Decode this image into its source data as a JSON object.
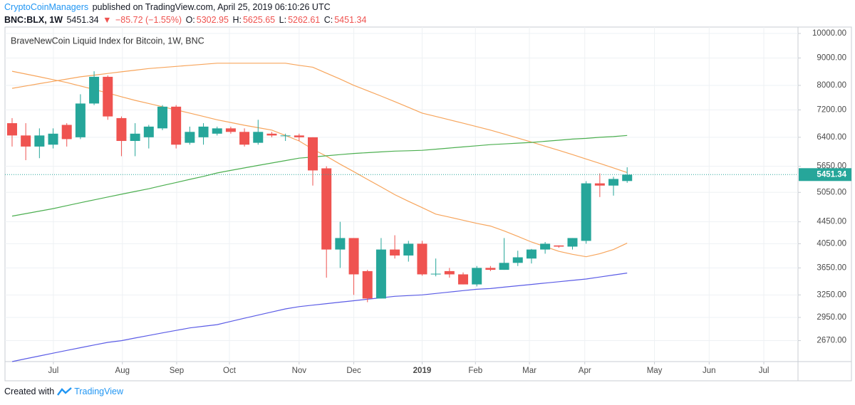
{
  "header": {
    "author": "CryptoCoinManagers",
    "published": "published on TradingView.com, April 25, 2019 06:10:26 UTC",
    "symbol": "BNC:BLX, 1W",
    "arrow": "▼",
    "change": "−85.72 (−1.55%)",
    "o_label": "O:",
    "h_label": "H:",
    "l_label": "L:",
    "c_label": "C:"
  },
  "footer": {
    "created": "Created with",
    "brand": "TradingView"
  },
  "chart_data": {
    "type": "candlestick",
    "title": "BraveNewCoin Liquid Index for Bitcoin, 1W, BNC",
    "log_scale": true,
    "grid": true,
    "up_color": "#26a69a",
    "down_color": "#ef5350",
    "open": [
      6800,
      6450,
      6150,
      6200,
      6750,
      6400,
      7400,
      8300,
      6950,
      6300,
      6400,
      6650,
      7300,
      6250,
      6400,
      6500,
      6650,
      6550,
      6250,
      6500,
      6450,
      6450,
      6400,
      5600,
      3950,
      4150,
      3600,
      3200,
      3950,
      3850,
      4050,
      3550,
      3600,
      3550,
      3400,
      3650,
      3620,
      3730,
      3800,
      3950,
      4020,
      4000,
      4100,
      5250,
      5200,
      5302.95
    ],
    "high": [
      6950,
      6800,
      6650,
      6650,
      6800,
      7700,
      8500,
      8350,
      7000,
      6800,
      6750,
      7350,
      7350,
      6700,
      6800,
      6700,
      6700,
      6650,
      6900,
      6550,
      6500,
      6500,
      6400,
      5650,
      4450,
      4150,
      3620,
      4150,
      4200,
      4100,
      4100,
      3800,
      3650,
      3580,
      3680,
      3680,
      4150,
      3930,
      3960,
      4080,
      4020,
      4150,
      5300,
      5480,
      5400,
      5625.65
    ],
    "low": [
      6150,
      5800,
      5850,
      6100,
      6150,
      6350,
      7350,
      6900,
      5900,
      5900,
      6100,
      6600,
      6100,
      6200,
      6200,
      6450,
      6500,
      6150,
      6200,
      6400,
      6300,
      6300,
      5200,
      3500,
      3650,
      3250,
      3150,
      3200,
      3800,
      3750,
      3530,
      3520,
      3500,
      3400,
      3370,
      3600,
      3620,
      3680,
      3720,
      3880,
      3980,
      3950,
      4050,
      4950,
      4980,
      5262.61
    ],
    "close": [
      6450,
      6150,
      6450,
      6500,
      6350,
      7400,
      8300,
      7000,
      6300,
      6500,
      6700,
      7300,
      6200,
      6550,
      6700,
      6650,
      6550,
      6200,
      6550,
      6450,
      6450,
      6400,
      5550,
      3950,
      4150,
      3550,
      3200,
      3950,
      3850,
      4050,
      3550,
      3560,
      3550,
      3400,
      3650,
      3620,
      3730,
      3820,
      3950,
      4050,
      4000,
      4150,
      5250,
      5200,
      5350,
      5451.34
    ],
    "lines": [
      {
        "color": "#f7a55c",
        "values": [
          7900,
          7980,
          8060,
          8140,
          8220,
          8300,
          8360,
          8420,
          8480,
          8540,
          8600,
          8640,
          8680,
          8720,
          8760,
          8800,
          8800,
          8800,
          8800,
          8800,
          8800,
          8720,
          8650,
          8430,
          8220,
          8000,
          7820,
          7640,
          7460,
          7280,
          7100,
          7000,
          6900,
          6800,
          6700,
          6600,
          6490,
          6380,
          6270,
          6160,
          6050,
          5940,
          5830,
          5720,
          5610,
          5500
        ]
      },
      {
        "color": "#f7a55c",
        "values": [
          8500,
          8400,
          8300,
          8200,
          8100,
          7980,
          7860,
          7740,
          7620,
          7500,
          7400,
          7300,
          7200,
          7100,
          7000,
          6900,
          6820,
          6740,
          6670,
          6600,
          6450,
          6300,
          6080,
          5900,
          5700,
          5520,
          5340,
          5170,
          5000,
          4860,
          4730,
          4600,
          4540,
          4480,
          4420,
          4370,
          4280,
          4180,
          4080,
          4000,
          3920,
          3870,
          3830,
          3880,
          3950,
          4060
        ]
      },
      {
        "color": "#4caf50",
        "values": [
          4560,
          4610,
          4660,
          4710,
          4770,
          4830,
          4890,
          4950,
          5010,
          5070,
          5130,
          5200,
          5270,
          5340,
          5410,
          5490,
          5550,
          5610,
          5670,
          5730,
          5790,
          5850,
          5880,
          5910,
          5940,
          5970,
          5990,
          6010,
          6030,
          6040,
          6050,
          6080,
          6110,
          6140,
          6170,
          6200,
          6220,
          6240,
          6260,
          6290,
          6320,
          6350,
          6370,
          6400,
          6420,
          6450
        ]
      },
      {
        "color": "#5b5ce6",
        "values": [
          2440,
          2470,
          2500,
          2530,
          2560,
          2590,
          2620,
          2650,
          2670,
          2700,
          2730,
          2760,
          2790,
          2820,
          2840,
          2860,
          2900,
          2940,
          2980,
          3020,
          3060,
          3090,
          3110,
          3130,
          3150,
          3170,
          3190,
          3210,
          3230,
          3240,
          3250,
          3270,
          3290,
          3310,
          3330,
          3340,
          3360,
          3380,
          3400,
          3420,
          3440,
          3460,
          3480,
          3510,
          3540,
          3570
        ]
      }
    ],
    "xlim": [
      -0.52,
      57.5
    ],
    "xticks": [
      {
        "value": 3.02,
        "label": "Jul"
      },
      {
        "value": 8.07,
        "label": "Aug"
      },
      {
        "value": 12.04,
        "label": "Sep"
      },
      {
        "value": 15.9,
        "label": "Oct"
      },
      {
        "value": 21.0,
        "label": "Nov"
      },
      {
        "value": 25.0,
        "label": "Dec"
      },
      {
        "value": 30.0,
        "label": "2019"
      },
      {
        "value": 33.9,
        "label": "Feb"
      },
      {
        "value": 37.85,
        "label": "Mar"
      },
      {
        "value": 41.9,
        "label": "Apr"
      },
      {
        "value": 47.0,
        "label": "May"
      },
      {
        "value": 51.0,
        "label": "Jun"
      },
      {
        "value": 55.0,
        "label": "Jul"
      }
    ],
    "ylim": [
      2440,
      10280
    ],
    "yticks": [
      {
        "value": 2670,
        "label": "2670.00"
      },
      {
        "value": 2950,
        "label": "2950.00"
      },
      {
        "value": 3250,
        "label": "3250.00"
      },
      {
        "value": 3650,
        "label": "3650.00"
      },
      {
        "value": 4050,
        "label": "4050.00"
      },
      {
        "value": 4450,
        "label": "4450.00"
      },
      {
        "value": 5050,
        "label": "5050.00"
      },
      {
        "value": 5650,
        "label": "5650.00"
      },
      {
        "value": 6400,
        "label": "6400.00"
      },
      {
        "value": 7200,
        "label": "7200.00"
      },
      {
        "value": 8000,
        "label": "8000.00"
      },
      {
        "value": 9000,
        "label": "9000.00"
      },
      {
        "value": 10000,
        "label": "10000.00"
      }
    ]
  }
}
